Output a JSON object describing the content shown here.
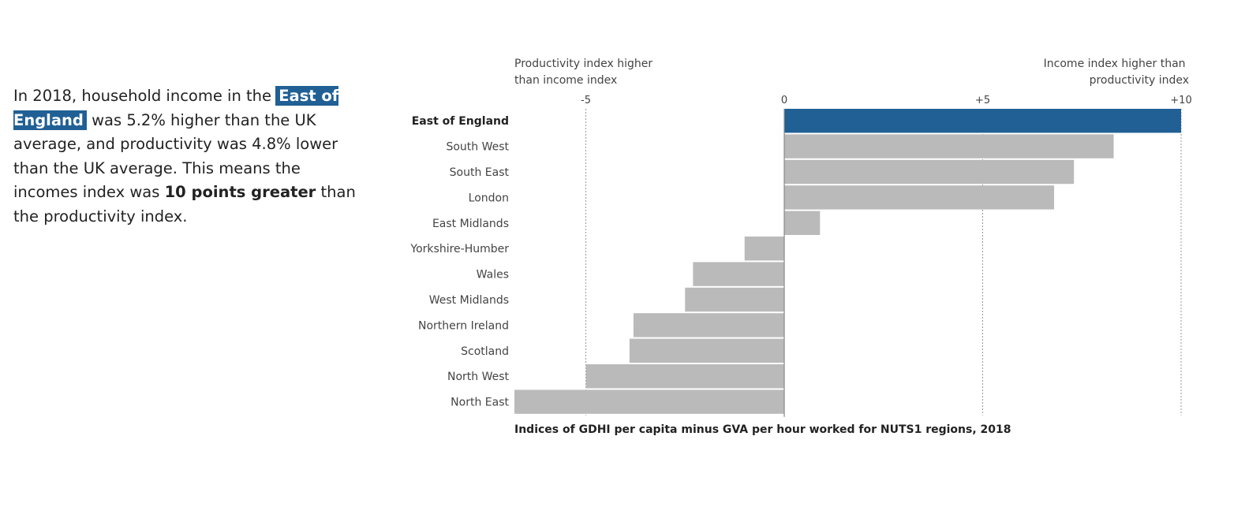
{
  "narrative": {
    "part1": "In 2018, household income in the",
    "highlight": "East of England",
    "part2": "was 5.2% higher than the UK average, and productivity was 4.8% lower than the UK average. This means the incomes index was",
    "emphasis": "10 points greater",
    "part3": "than the productivity index."
  },
  "chart_data": {
    "type": "bar",
    "orientation": "horizontal",
    "annotation_left": [
      "Productivity index higher",
      "than income index"
    ],
    "annotation_right": [
      "Income index higher than",
      "productivity index"
    ],
    "xlabel": "Indices of GDHI per capita minus GVA per hour worked for NUTS1 regions, 2018",
    "xlim": [
      -6.8,
      10
    ],
    "ticks": [
      {
        "value": -5,
        "label": "-5"
      },
      {
        "value": 0,
        "label": "0"
      },
      {
        "value": 5,
        "label": "+5"
      },
      {
        "value": 10,
        "label": "+10"
      }
    ],
    "highlighted": "East of England",
    "highlight_color": "#206095",
    "bar_color": "#bababa",
    "categories": [
      "East of England",
      "South West",
      "South East",
      "London",
      "East Midlands",
      "Yorkshire-Humber",
      "Wales",
      "West Midlands",
      "Northern Ireland",
      "Scotland",
      "North West",
      "North East"
    ],
    "values": [
      10.0,
      8.3,
      7.3,
      6.8,
      0.9,
      -1.0,
      -2.3,
      -2.5,
      -3.8,
      -3.9,
      -5.0,
      -6.8
    ]
  }
}
